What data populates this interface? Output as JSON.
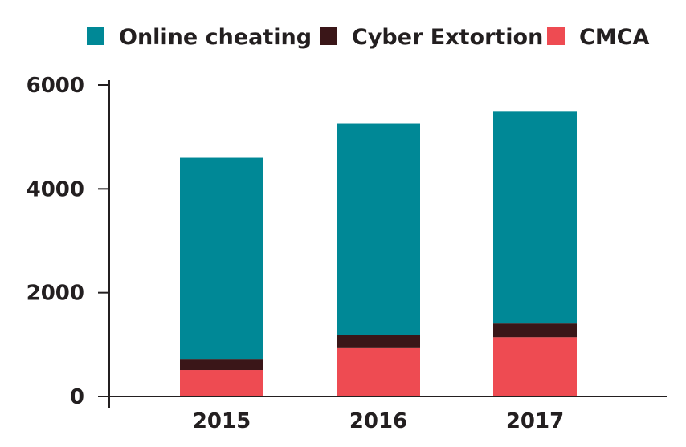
{
  "chart_data": {
    "type": "bar",
    "stacked": true,
    "title": "",
    "xlabel": "",
    "ylabel": "",
    "categories": [
      "2015",
      "2016",
      "2017"
    ],
    "series": [
      {
        "name": "CMCA",
        "color": "#ee4b52",
        "values": [
          510,
          930,
          1140
        ]
      },
      {
        "name": "Cyber Extortion",
        "color": "#3a1618",
        "values": [
          215,
          260,
          265
        ]
      },
      {
        "name": "Online cheating",
        "color": "#008896",
        "values": [
          3875,
          4075,
          4095
        ]
      }
    ],
    "ylim": [
      0,
      6000
    ],
    "yticks": [
      "0",
      "2000",
      "4000",
      "6000"
    ],
    "grid": false,
    "legend": {
      "placement": "top",
      "order": [
        "Online cheating",
        "Cyber Extortion",
        "CMCA"
      ]
    }
  }
}
